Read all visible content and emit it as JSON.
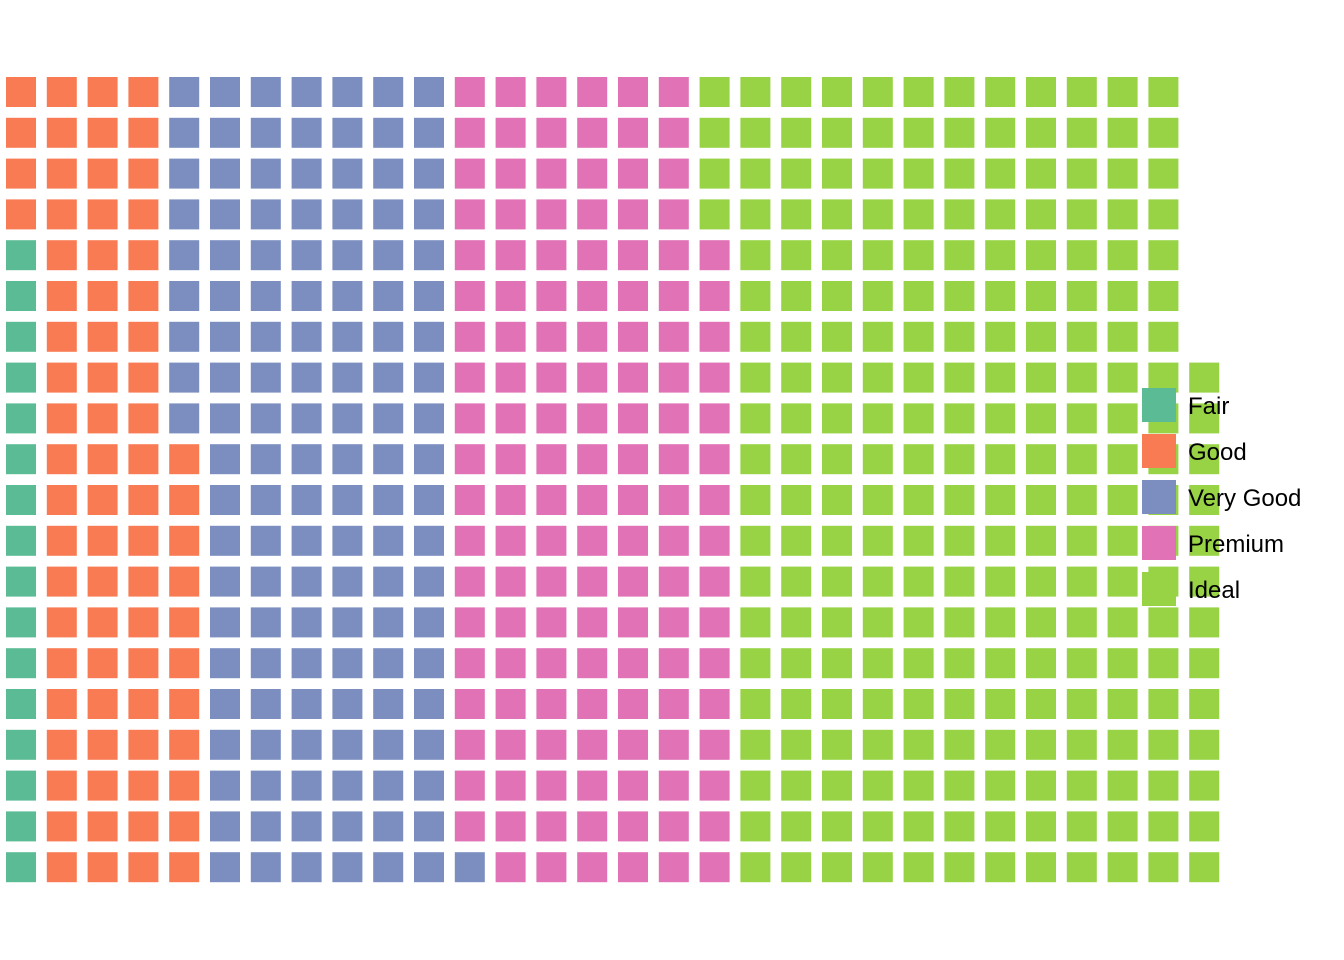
{
  "chart_data": {
    "type": "waffle",
    "title": "",
    "xlabel": "",
    "ylabel": "",
    "rows": 20,
    "grid": false,
    "legend_position": "right",
    "fill_order": "column-major, bottom-to-top, left-to-right",
    "categories": [
      "Fair",
      "Good",
      "Very Good",
      "Premium",
      "Ideal"
    ],
    "values": [
      16,
      75,
      130,
      135,
      237
    ],
    "colors": [
      "#5bbb95",
      "#f97b54",
      "#7b8ebf",
      "#e072b5",
      "#97d344"
    ]
  }
}
